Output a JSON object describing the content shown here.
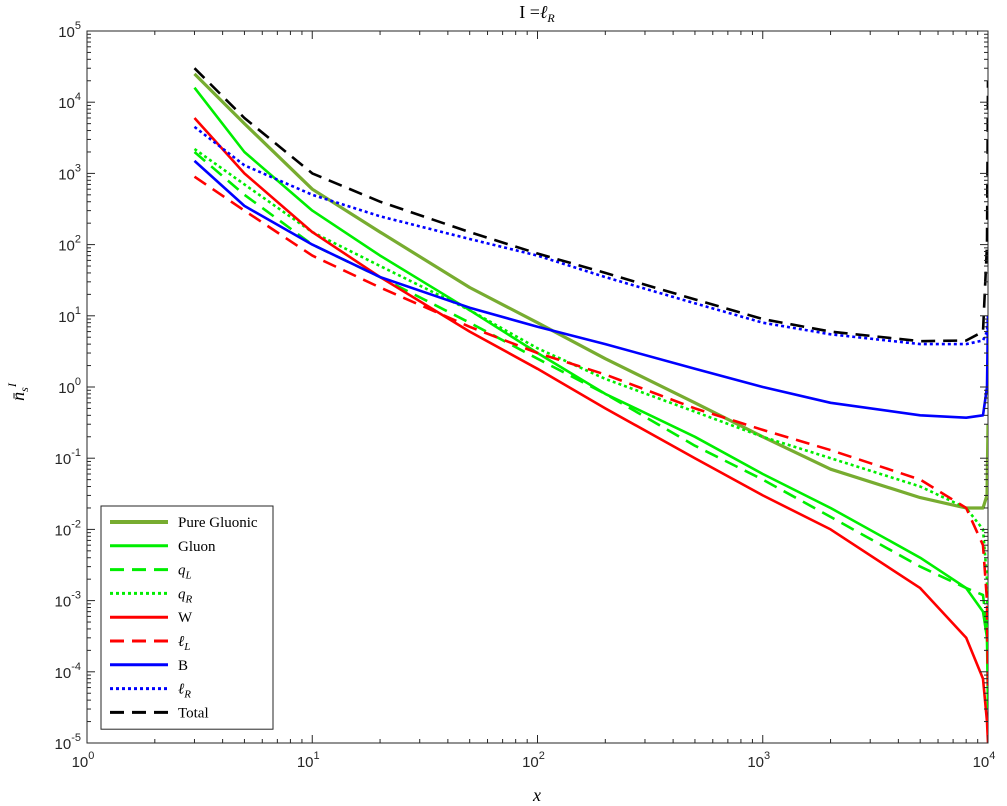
{
  "chart_data": {
    "type": "line",
    "title": "I =ℓ_R",
    "xlabel": "x",
    "ylabel": "n̄_s^I",
    "xscale": "log",
    "yscale": "log",
    "xlim": [
      1,
      10000
    ],
    "ylim": [
      1e-05,
      100000
    ],
    "grid": false,
    "legend_position": "bottom-left",
    "x_ticks": [
      {
        "base": "10",
        "exp": "0"
      },
      {
        "base": "10",
        "exp": "1"
      },
      {
        "base": "10",
        "exp": "2"
      },
      {
        "base": "10",
        "exp": "3"
      },
      {
        "base": "10",
        "exp": "4"
      }
    ],
    "y_ticks": [
      {
        "base": "10",
        "exp": "-5"
      },
      {
        "base": "10",
        "exp": "-4"
      },
      {
        "base": "10",
        "exp": "-3"
      },
      {
        "base": "10",
        "exp": "-2"
      },
      {
        "base": "10",
        "exp": "-1"
      },
      {
        "base": "10",
        "exp": "0"
      },
      {
        "base": "10",
        "exp": "1"
      },
      {
        "base": "10",
        "exp": "2"
      },
      {
        "base": "10",
        "exp": "3"
      },
      {
        "base": "10",
        "exp": "4"
      },
      {
        "base": "10",
        "exp": "5"
      }
    ],
    "series": [
      {
        "name": "Pure Gluonic",
        "color": "#77ac30",
        "style": "solid",
        "x": [
          3,
          5,
          10,
          20,
          50,
          100,
          200,
          500,
          1000,
          2000,
          5000,
          8000,
          9500,
          9900,
          10000
        ],
        "y": [
          25000,
          5000,
          600,
          150,
          25,
          8,
          2.5,
          0.6,
          0.2,
          0.07,
          0.028,
          0.02,
          0.02,
          0.03,
          0.3
        ]
      },
      {
        "name": "Gluon",
        "color": "#00ee00",
        "style": "solid",
        "x": [
          3,
          5,
          10,
          20,
          50,
          100,
          200,
          500,
          1000,
          2000,
          5000,
          8000,
          9500,
          9900,
          10000
        ],
        "y": [
          16000,
          2000,
          300,
          70,
          12,
          3,
          0.8,
          0.2,
          0.06,
          0.02,
          0.004,
          0.0015,
          0.0007,
          0.0003,
          3e-05
        ]
      },
      {
        "name": "q_L",
        "color": "#00ee00",
        "style": "dashed",
        "x": [
          3,
          5,
          10,
          20,
          50,
          100,
          200,
          500,
          1000,
          2000,
          5000,
          8000,
          9500,
          9900,
          10000
        ],
        "y": [
          2000,
          500,
          100,
          35,
          8,
          2.5,
          0.8,
          0.15,
          0.05,
          0.015,
          0.003,
          0.0015,
          0.0012,
          0.0004,
          5e-05
        ]
      },
      {
        "name": "q_R",
        "color": "#00ee00",
        "style": "dotted",
        "x": [
          3,
          5,
          10,
          20,
          50,
          100,
          200,
          500,
          1000,
          2000,
          5000,
          8000,
          9500,
          9900,
          10000
        ],
        "y": [
          2200,
          700,
          150,
          50,
          12,
          3.5,
          1.3,
          0.45,
          0.2,
          0.1,
          0.04,
          0.02,
          0.01,
          0.002,
          0.0001
        ]
      },
      {
        "name": "W",
        "color": "#ff0000",
        "style": "solid",
        "x": [
          3,
          5,
          10,
          20,
          50,
          100,
          200,
          500,
          1000,
          2000,
          5000,
          8000,
          9500,
          9900,
          10000
        ],
        "y": [
          6000,
          1000,
          150,
          35,
          6,
          1.8,
          0.5,
          0.1,
          0.03,
          0.01,
          0.0015,
          0.0003,
          8e-05,
          2e-05,
          1e-05
        ]
      },
      {
        "name": "ℓ_L",
        "color": "#ff0000",
        "style": "dashed",
        "x": [
          3,
          5,
          10,
          20,
          50,
          100,
          200,
          500,
          1000,
          2000,
          5000,
          8000,
          9500,
          9900,
          10000
        ],
        "y": [
          900,
          300,
          70,
          25,
          7,
          3,
          1.5,
          0.5,
          0.25,
          0.13,
          0.05,
          0.02,
          0.006,
          0.001,
          5e-05
        ]
      },
      {
        "name": "B",
        "color": "#0000ff",
        "style": "solid",
        "x": [
          3,
          5,
          10,
          20,
          50,
          100,
          200,
          500,
          1000,
          2000,
          5000,
          8000,
          9500,
          9900,
          10000
        ],
        "y": [
          1500,
          350,
          100,
          35,
          13,
          7,
          4,
          1.8,
          1.0,
          0.6,
          0.4,
          0.37,
          0.4,
          1.0,
          10
        ]
      },
      {
        "name": "ℓ_R",
        "color": "#0000ff",
        "style": "dotted",
        "x": [
          3,
          5,
          10,
          20,
          50,
          100,
          200,
          500,
          1000,
          2000,
          5000,
          8000,
          9500,
          9900,
          10000
        ],
        "y": [
          4500,
          1300,
          500,
          250,
          120,
          70,
          35,
          15,
          8,
          5.5,
          4.0,
          4.0,
          4.5,
          6,
          10
        ]
      },
      {
        "name": "Total",
        "color": "#000000",
        "style": "dashed",
        "x": [
          3,
          5,
          10,
          20,
          50,
          100,
          200,
          500,
          1000,
          2000,
          5000,
          8000,
          9500,
          9900,
          10000
        ],
        "y": [
          30000,
          6000,
          1000,
          400,
          150,
          75,
          40,
          17,
          9,
          6,
          4.4,
          4.5,
          6,
          100,
          20000
        ]
      }
    ]
  }
}
